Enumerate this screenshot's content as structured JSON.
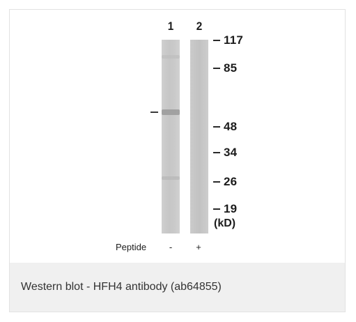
{
  "figure": {
    "lane_labels": [
      "1",
      "2"
    ],
    "markers": [
      "117",
      "85",
      "48",
      "34",
      "26",
      "19"
    ],
    "unit_label": "(kD)",
    "peptide_label": "Peptide",
    "peptide_signs": [
      "-",
      "+"
    ]
  },
  "caption": "Western blot - HFH4 antibody (ab64855)"
}
